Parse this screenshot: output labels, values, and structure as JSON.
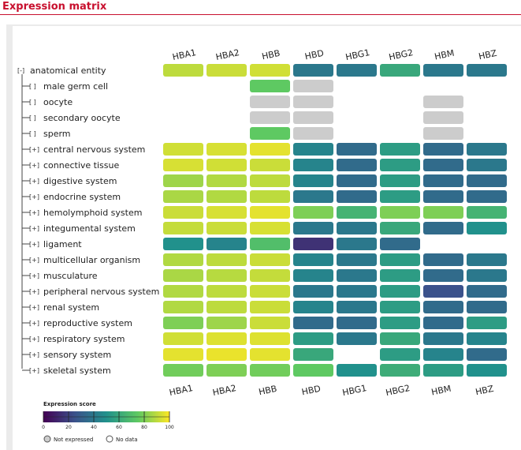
{
  "header": {
    "title": "Expression matrix"
  },
  "colors": {
    "accent": "#c8102e",
    "not_expressed": "#cccccc"
  },
  "chart_data": {
    "type": "heatmap",
    "genes": [
      "HBA1",
      "HBA2",
      "HBB",
      "HBD",
      "HBG1",
      "HBG2",
      "HBM",
      "HBZ"
    ],
    "root": {
      "label": "anatomical entity",
      "toggle": "[-]"
    },
    "rows": [
      {
        "label": "male germ cell",
        "toggle": "[ ]"
      },
      {
        "label": "oocyte",
        "toggle": "[ ]"
      },
      {
        "label": "secondary oocyte",
        "toggle": "[ ]"
      },
      {
        "label": "sperm",
        "toggle": "[ ]"
      },
      {
        "label": "central nervous system",
        "toggle": "[+]"
      },
      {
        "label": "connective tissue",
        "toggle": "[+]"
      },
      {
        "label": "digestive system",
        "toggle": "[+]"
      },
      {
        "label": "endocrine system",
        "toggle": "[+]"
      },
      {
        "label": "hemolymphoid system",
        "toggle": "[+]"
      },
      {
        "label": "integumental system",
        "toggle": "[+]"
      },
      {
        "label": "ligament",
        "toggle": "[+]"
      },
      {
        "label": "multicellular organism",
        "toggle": "[+]"
      },
      {
        "label": "musculature",
        "toggle": "[+]"
      },
      {
        "label": "peripheral nervous system",
        "toggle": "[+]"
      },
      {
        "label": "renal system",
        "toggle": "[+]"
      },
      {
        "label": "reproductive system",
        "toggle": "[+]"
      },
      {
        "label": "respiratory system",
        "toggle": "[+]"
      },
      {
        "label": "sensory system",
        "toggle": "[+]"
      },
      {
        "label": "skeletal system",
        "toggle": "[+]"
      }
    ],
    "values": [
      [
        90,
        92,
        93,
        40,
        40,
        60,
        40,
        40
      ],
      [
        null,
        null,
        75,
        "NE",
        null,
        null,
        null,
        null
      ],
      [
        null,
        null,
        "NE",
        "NE",
        null,
        null,
        "NE",
        null
      ],
      [
        null,
        null,
        "NE",
        "NE",
        null,
        null,
        "NE",
        null
      ],
      [
        null,
        null,
        75,
        "NE",
        null,
        null,
        "NE",
        null
      ],
      [
        93,
        94,
        96,
        45,
        35,
        55,
        35,
        40
      ],
      [
        94,
        93,
        92,
        45,
        35,
        55,
        35,
        40
      ],
      [
        85,
        88,
        90,
        45,
        35,
        55,
        35,
        35
      ],
      [
        87,
        88,
        90,
        40,
        35,
        55,
        35,
        35
      ],
      [
        92,
        94,
        96,
        80,
        65,
        80,
        80,
        65
      ],
      [
        91,
        92,
        94,
        40,
        40,
        60,
        35,
        50
      ],
      [
        50,
        45,
        70,
        15,
        40,
        35,
        null,
        null
      ],
      [
        88,
        90,
        92,
        45,
        40,
        55,
        35,
        40
      ],
      [
        87,
        89,
        91,
        45,
        40,
        55,
        35,
        40
      ],
      [
        88,
        90,
        92,
        40,
        40,
        55,
        25,
        35
      ],
      [
        88,
        90,
        92,
        45,
        40,
        55,
        35,
        35
      ],
      [
        80,
        85,
        92,
        35,
        35,
        55,
        35,
        55
      ],
      [
        93,
        95,
        95,
        55,
        40,
        60,
        40,
        45
      ],
      [
        96,
        97,
        96,
        60,
        null,
        55,
        45,
        35
      ],
      [
        78,
        80,
        78,
        75,
        50,
        62,
        55,
        50
      ]
    ],
    "legend": {
      "title": "Expression score",
      "min": 0,
      "max": 100,
      "ticks": [
        "0",
        "20",
        "40",
        "60",
        "80",
        "100"
      ],
      "not_expressed_label": "Not expressed",
      "no_data_label": "No data"
    }
  }
}
